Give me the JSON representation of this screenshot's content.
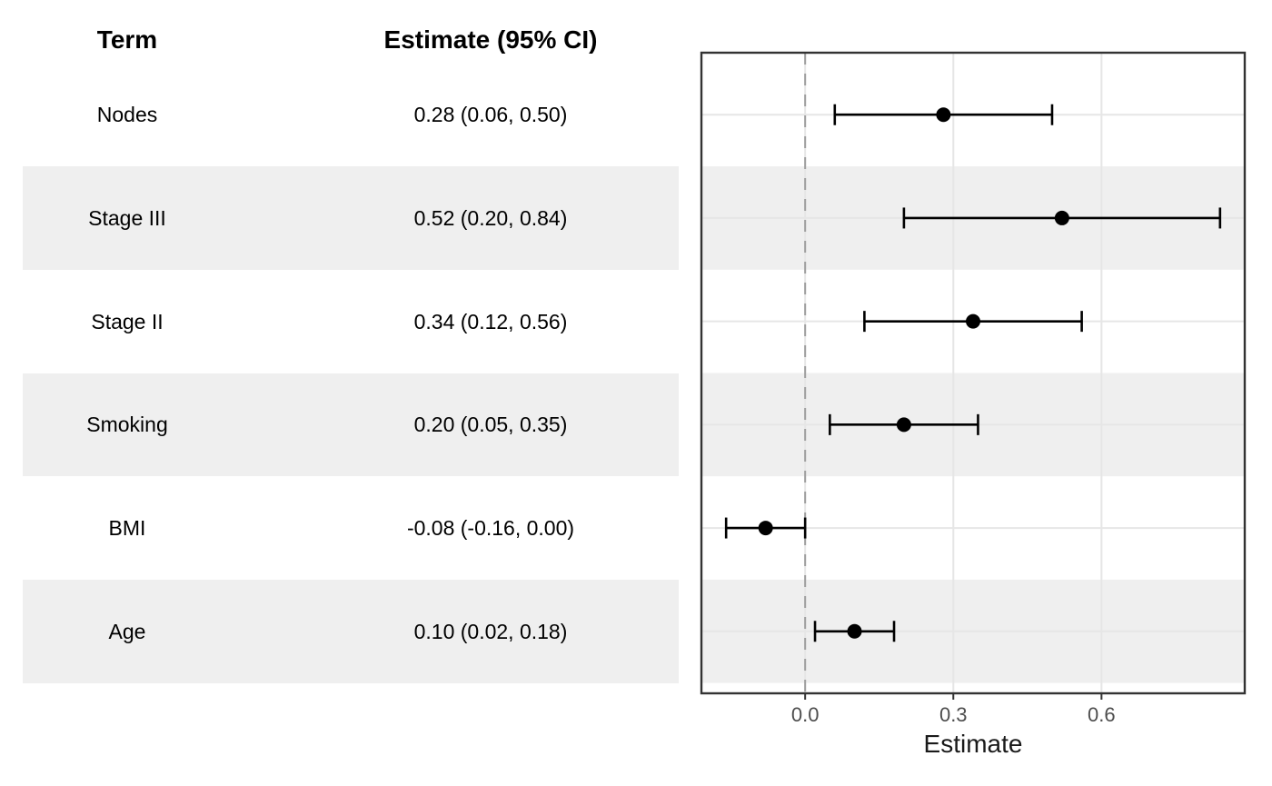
{
  "table": {
    "term_header": "Term",
    "estimate_header": "Estimate (95% CI)",
    "rows": [
      {
        "term": "Nodes",
        "estimate_ci": "0.28 (0.06, 0.50)"
      },
      {
        "term": "Stage III",
        "estimate_ci": "0.52 (0.20, 0.84)"
      },
      {
        "term": "Stage II",
        "estimate_ci": "0.34 (0.12, 0.56)"
      },
      {
        "term": "Smoking",
        "estimate_ci": "0.20 (0.05, 0.35)"
      },
      {
        "term": "BMI",
        "estimate_ci": "-0.08 (-0.16, 0.00)"
      },
      {
        "term": "Age",
        "estimate_ci": "0.10 (0.02, 0.18)"
      }
    ]
  },
  "chart_data": {
    "type": "scatter",
    "subtype": "forest-plot",
    "orientation": "horizontal",
    "title": "",
    "xlabel": "Estimate",
    "ylabel": "",
    "categories": [
      "Nodes",
      "Stage III",
      "Stage II",
      "Smoking",
      "BMI",
      "Age"
    ],
    "series": [
      {
        "name": "Estimate (95% CI)",
        "values": [
          0.28,
          0.52,
          0.34,
          0.2,
          -0.08,
          0.1
        ],
        "ci_low": [
          0.06,
          0.2,
          0.12,
          0.05,
          -0.16,
          0.02
        ],
        "ci_high": [
          0.5,
          0.84,
          0.56,
          0.35,
          0.0,
          0.18
        ]
      }
    ],
    "x_ticks": [
      0.0,
      0.3,
      0.6
    ],
    "x_tick_labels": [
      "0.0",
      "0.3",
      "0.6"
    ],
    "xlim": [
      -0.21,
      0.89
    ],
    "reference_line_x": 0.0,
    "grid": "major-only",
    "legend": "none",
    "striped_rows": "every second row starting at row 2"
  },
  "colors": {
    "background": "#ffffff",
    "stripe": "#efefef",
    "gridline": "#e6e6e6",
    "panel_border": "#333333",
    "reference_line": "#9e9e9e",
    "marker": "#000000",
    "tick_mark": "#333333",
    "tick_label": "#4d4d4d",
    "axis_title": "#1a1a1a",
    "text": "#000000"
  }
}
